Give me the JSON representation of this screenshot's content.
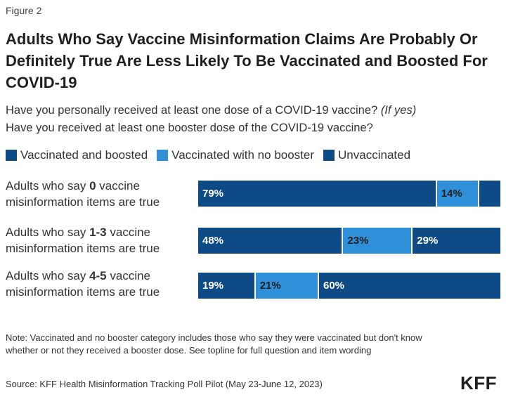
{
  "figure_label": "Figure 2",
  "title": "Adults Who Say Vaccine Misinformation Claims Are Probably Or Definitely True Are Less Likely To Be Vaccinated and Boosted For COVID-19",
  "subtitle_line1": "Have you personally received at least one dose of a COVID-19 vaccine?",
  "subtitle_line1_italic": "(If yes)",
  "subtitle_line2": "Have you received at least one booster dose of the COVID-19 vaccine?",
  "colors": {
    "vaccinated_boosted": "#0d4a86",
    "vaccinated_no_booster": "#2f8fd8",
    "unvaccinated": "#0d4a86"
  },
  "chart_data": {
    "type": "bar",
    "orientation": "horizontal",
    "stacked": true,
    "xlim": [
      0,
      100
    ],
    "legend_position": "top-left",
    "grid": false,
    "rows": [
      {
        "pre": "Adults who say ",
        "bold": "0",
        "post": " vaccine",
        "line2": "misinformation items are true"
      },
      {
        "pre": "Adults who say ",
        "bold": "1-3",
        "post": " vaccine",
        "line2": "misinformation items are true"
      },
      {
        "pre": "Adults who say ",
        "bold": "4-5",
        "post": " vaccine",
        "line2": "misinformation items are true"
      }
    ],
    "series": [
      {
        "name": "Vaccinated and boosted",
        "values": [
          79,
          48,
          19
        ],
        "labels": [
          "79%",
          "48%",
          "19%"
        ]
      },
      {
        "name": "Vaccinated with no booster",
        "values": [
          14,
          23,
          21
        ],
        "labels": [
          "14%",
          "23%",
          "21%"
        ]
      },
      {
        "name": "Unvaccinated",
        "values": [
          7,
          29,
          60
        ],
        "labels": [
          "",
          "29%",
          "60%"
        ]
      }
    ]
  },
  "note": "Note: Vaccinated and no booster category includes those who say they were vaccinated but don't know whether or not they received a booster dose. See topline for full question and item wording",
  "source": "Source: KFF Health Misinformation Tracking Poll Pilot (May 23-June 12, 2023)",
  "logo_text": "KFF"
}
